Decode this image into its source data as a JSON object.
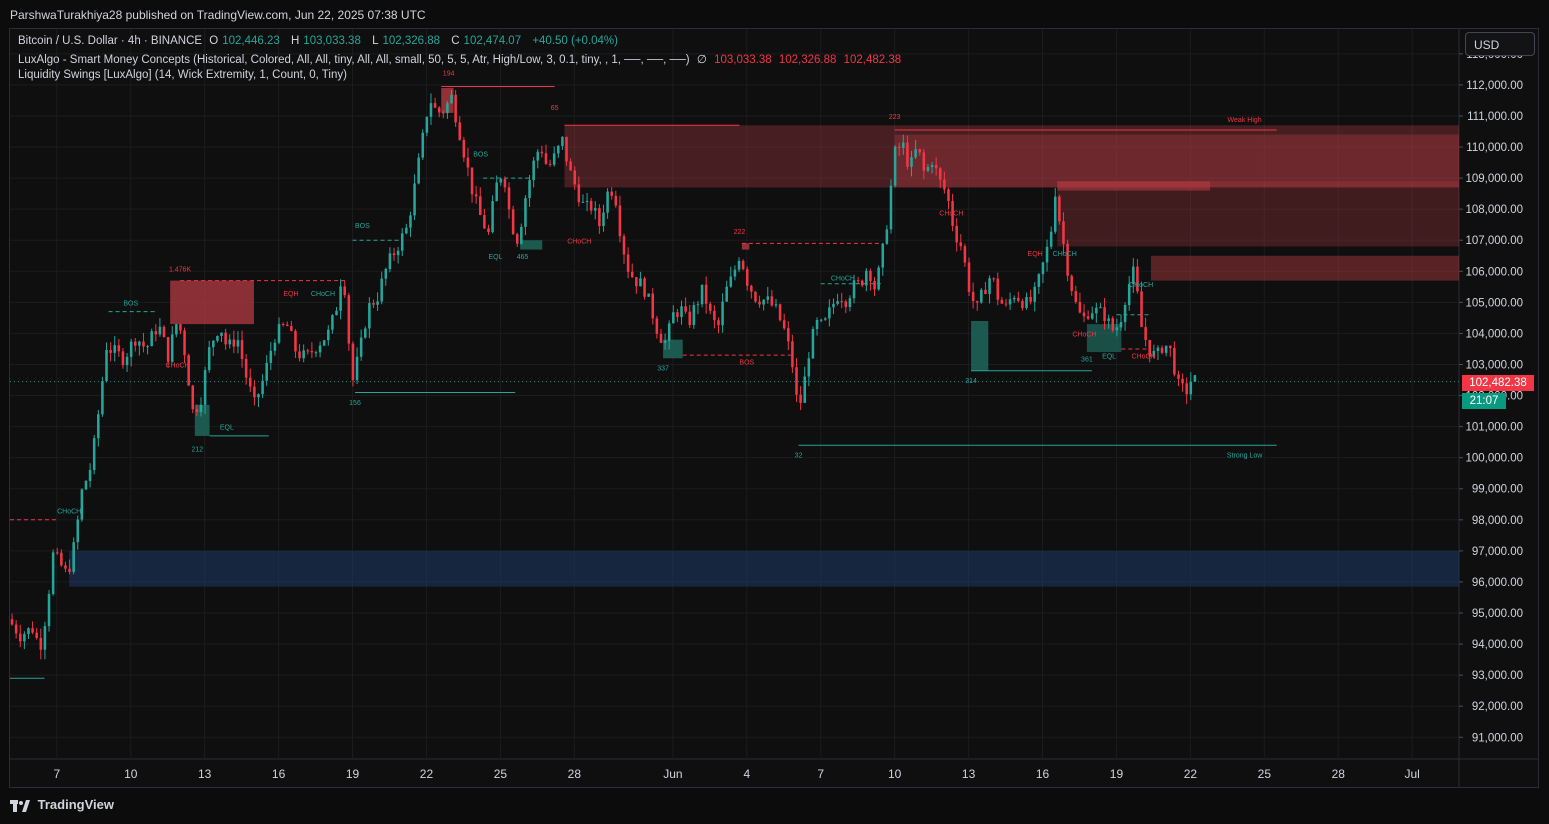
{
  "header": {
    "publisher": "ParshwaTurakhiya28 published on TradingView.com, Jun 22, 2025 07:38 UTC"
  },
  "legend": {
    "symbol": "Bitcoin / U.S. Dollar · 4h · BINANCE",
    "open_label": "O",
    "open": "102,446.23",
    "high_label": "H",
    "high": "103,033.38",
    "low_label": "L",
    "low": "102,326.88",
    "close_label": "C",
    "close": "102,474.07",
    "change": "+40.50 (+0.04%)",
    "indicator1": "LuxAlgo - Smart Money Concepts (Historical, Colored, All, All, tiny, All, All, small, 50, 5, 5, Atr, High/Low, 3, 0.1, tiny, , 1, ──, ──, ──)",
    "indicator1_null": "∅",
    "indicator1_v1": "103,033.38",
    "indicator1_v2": "102,326.88",
    "indicator1_v3": "102,482.38",
    "indicator2": "Liquidity Swings [LuxAlgo] (14, Wick Extremity, 1, Count, 0, Tiny)"
  },
  "currency_button": "USD",
  "price_tag": "102,482.38",
  "countdown_tag": "21:07",
  "footer": {
    "brand": "TradingView"
  },
  "colors": {
    "up": "#26a69a",
    "down": "#f23645",
    "supply_zone": "#b33b41",
    "demand_zone": "#1f6b5f",
    "blue_zone": "#1e3a66",
    "grid": "#1c1c1f"
  },
  "chart_data": {
    "type": "candlestick",
    "title": "",
    "xlabel": "",
    "ylabel": "",
    "ylim": [
      90300,
      113800
    ],
    "y_ticks": [
      91000,
      92000,
      93000,
      94000,
      95000,
      96000,
      97000,
      98000,
      99000,
      100000,
      101000,
      102000,
      103000,
      104000,
      105000,
      106000,
      107000,
      108000,
      109000,
      110000,
      111000,
      112000,
      113000
    ],
    "y_tick_labels": [
      "91,000.00",
      "92,000.00",
      "93,000.00",
      "94,000.00",
      "95,000.00",
      "96,000.00",
      "97,000.00",
      "98,000.00",
      "99,000.00",
      "100,000.00",
      "101,000.00",
      "102,000.00",
      "103,000.00",
      "104,000.00",
      "105,000.00",
      "106,000.00",
      "107,000.00",
      "108,000.00",
      "109,000.00",
      "110,000.00",
      "111,000.00",
      "112,000.00",
      "113,000.00"
    ],
    "x_ticks": [
      {
        "day": 7,
        "label": "7"
      },
      {
        "day": 10,
        "label": "10"
      },
      {
        "day": 13,
        "label": "13"
      },
      {
        "day": 16,
        "label": "16"
      },
      {
        "day": 19,
        "label": "19"
      },
      {
        "day": 22,
        "label": "22"
      },
      {
        "day": 25,
        "label": "25"
      },
      {
        "day": 28,
        "label": "28"
      },
      {
        "day": 32,
        "label": "Jun"
      },
      {
        "day": 35,
        "label": "4"
      },
      {
        "day": 38,
        "label": "7"
      },
      {
        "day": 41,
        "label": "10"
      },
      {
        "day": 44,
        "label": "13"
      },
      {
        "day": 47,
        "label": "16"
      },
      {
        "day": 50,
        "label": "19"
      },
      {
        "day": 53,
        "label": "22"
      },
      {
        "day": 56,
        "label": "25"
      },
      {
        "day": 59,
        "label": "28"
      },
      {
        "day": 62,
        "label": "Jul"
      }
    ],
    "x_range_days": [
      5.1,
      63.9
    ],
    "price_path": [
      [
        5.1,
        94800
      ],
      [
        5.6,
        94300
      ],
      [
        6.1,
        94500
      ],
      [
        6.4,
        93900
      ],
      [
        6.7,
        95200
      ],
      [
        6.9,
        96900
      ],
      [
        7.2,
        96600
      ],
      [
        7.5,
        96200
      ],
      [
        7.8,
        97200
      ],
      [
        8.1,
        98900
      ],
      [
        8.5,
        99800
      ],
      [
        8.8,
        101600
      ],
      [
        9.1,
        103600
      ],
      [
        9.4,
        103400
      ],
      [
        9.8,
        103200
      ],
      [
        10.3,
        103900
      ],
      [
        10.7,
        103500
      ],
      [
        11.2,
        104300
      ],
      [
        11.6,
        103300
      ],
      [
        12.0,
        104500
      ],
      [
        12.3,
        103300
      ],
      [
        12.6,
        101500
      ],
      [
        12.9,
        101800
      ],
      [
        13.3,
        103600
      ],
      [
        13.7,
        104300
      ],
      [
        14.0,
        103500
      ],
      [
        14.4,
        103900
      ],
      [
        14.8,
        102500
      ],
      [
        15.1,
        101700
      ],
      [
        15.5,
        102600
      ],
      [
        15.9,
        103900
      ],
      [
        16.4,
        104300
      ],
      [
        16.8,
        103400
      ],
      [
        17.2,
        103200
      ],
      [
        17.6,
        103600
      ],
      [
        18.1,
        104000
      ],
      [
        18.4,
        104700
      ],
      [
        18.7,
        106200
      ],
      [
        18.9,
        104000
      ],
      [
        19.1,
        102500
      ],
      [
        19.4,
        103500
      ],
      [
        19.7,
        104800
      ],
      [
        20.1,
        105200
      ],
      [
        20.5,
        106200
      ],
      [
        20.9,
        106800
      ],
      [
        21.3,
        107400
      ],
      [
        21.6,
        108700
      ],
      [
        21.9,
        110100
      ],
      [
        22.2,
        111600
      ],
      [
        22.5,
        111100
      ],
      [
        22.8,
        111200
      ],
      [
        23.1,
        111600
      ],
      [
        23.4,
        110600
      ],
      [
        23.7,
        109500
      ],
      [
        24.0,
        108400
      ],
      [
        24.3,
        107700
      ],
      [
        24.6,
        107200
      ],
      [
        24.9,
        108700
      ],
      [
        25.2,
        109300
      ],
      [
        25.5,
        107600
      ],
      [
        25.8,
        107000
      ],
      [
        26.1,
        108400
      ],
      [
        26.4,
        109400
      ],
      [
        26.7,
        110100
      ],
      [
        27.0,
        109300
      ],
      [
        27.3,
        109700
      ],
      [
        27.6,
        110200
      ],
      [
        27.9,
        109200
      ],
      [
        28.2,
        108600
      ],
      [
        28.5,
        108000
      ],
      [
        28.8,
        108100
      ],
      [
        29.1,
        107500
      ],
      [
        29.4,
        108500
      ],
      [
        29.7,
        108700
      ],
      [
        30.0,
        107000
      ],
      [
        30.3,
        106000
      ],
      [
        30.6,
        105700
      ],
      [
        30.9,
        105500
      ],
      [
        31.2,
        104800
      ],
      [
        31.5,
        104000
      ],
      [
        31.8,
        103700
      ],
      [
        32.1,
        104600
      ],
      [
        32.4,
        104800
      ],
      [
        32.7,
        104300
      ],
      [
        33.0,
        104900
      ],
      [
        33.3,
        105400
      ],
      [
        33.6,
        104600
      ],
      [
        33.9,
        104100
      ],
      [
        34.2,
        105300
      ],
      [
        34.5,
        105800
      ],
      [
        34.8,
        106600
      ],
      [
        35.1,
        105700
      ],
      [
        35.4,
        105200
      ],
      [
        35.7,
        105100
      ],
      [
        36.0,
        105000
      ],
      [
        36.3,
        104700
      ],
      [
        36.6,
        104100
      ],
      [
        36.9,
        103200
      ],
      [
        37.1,
        101900
      ],
      [
        37.3,
        101800
      ],
      [
        37.6,
        103400
      ],
      [
        37.9,
        104300
      ],
      [
        38.2,
        104200
      ],
      [
        38.5,
        104800
      ],
      [
        38.8,
        105300
      ],
      [
        39.1,
        105100
      ],
      [
        39.4,
        105500
      ],
      [
        39.7,
        105600
      ],
      [
        40.0,
        106200
      ],
      [
        40.3,
        105400
      ],
      [
        40.5,
        106200
      ],
      [
        40.7,
        107100
      ],
      [
        40.9,
        108500
      ],
      [
        41.1,
        109800
      ],
      [
        41.4,
        110100
      ],
      [
        41.7,
        109300
      ],
      [
        42.0,
        110000
      ],
      [
        42.3,
        109100
      ],
      [
        42.6,
        109600
      ],
      [
        42.9,
        108900
      ],
      [
        43.2,
        108500
      ],
      [
        43.5,
        107300
      ],
      [
        43.8,
        106800
      ],
      [
        44.1,
        105500
      ],
      [
        44.4,
        104700
      ],
      [
        44.7,
        105400
      ],
      [
        45.0,
        105900
      ],
      [
        45.3,
        105100
      ],
      [
        45.6,
        104800
      ],
      [
        45.9,
        105300
      ],
      [
        46.2,
        105100
      ],
      [
        46.5,
        104900
      ],
      [
        46.8,
        105300
      ],
      [
        47.1,
        106200
      ],
      [
        47.4,
        107100
      ],
      [
        47.6,
        108600
      ],
      [
        47.8,
        107500
      ],
      [
        48.1,
        106100
      ],
      [
        48.4,
        105000
      ],
      [
        48.7,
        104400
      ],
      [
        49.0,
        104800
      ],
      [
        49.3,
        104700
      ],
      [
        49.6,
        104600
      ],
      [
        49.9,
        104100
      ],
      [
        50.2,
        104300
      ],
      [
        50.5,
        105400
      ],
      [
        50.8,
        106000
      ],
      [
        51.1,
        104200
      ],
      [
        51.4,
        103500
      ],
      [
        51.7,
        103200
      ],
      [
        52.0,
        103700
      ],
      [
        52.3,
        103400
      ],
      [
        52.6,
        102300
      ],
      [
        52.9,
        102100
      ],
      [
        53.1,
        102482
      ]
    ],
    "zones": [
      {
        "kind": "supply",
        "x0": 11.6,
        "x1": 15.0,
        "y0": 104300,
        "y1": 105700,
        "opacity": 0.75
      },
      {
        "kind": "supply",
        "x0": 22.6,
        "x1": 23.1,
        "y0": 111100,
        "y1": 111900,
        "opacity": 0.8
      },
      {
        "kind": "supply",
        "x0": 27.6,
        "x1": 63.9,
        "y0": 108700,
        "y1": 110700,
        "opacity": 0.35
      },
      {
        "kind": "supply",
        "x0": 41.0,
        "x1": 63.9,
        "y0": 108700,
        "y1": 110400,
        "opacity": 0.35
      },
      {
        "kind": "supply",
        "x0": 47.6,
        "x1": 63.9,
        "y0": 106800,
        "y1": 108900,
        "opacity": 0.3
      },
      {
        "kind": "supply",
        "x0": 47.6,
        "x1": 53.8,
        "y0": 108600,
        "y1": 108900,
        "opacity": 0.6
      },
      {
        "kind": "supply",
        "x0": 51.4,
        "x1": 63.9,
        "y0": 105700,
        "y1": 106500,
        "opacity": 0.45
      },
      {
        "kind": "supply",
        "x0": 34.8,
        "x1": 35.1,
        "y0": 106700,
        "y1": 106900,
        "opacity": 0.8
      },
      {
        "kind": "demand",
        "x0": 12.6,
        "x1": 13.2,
        "y0": 100700,
        "y1": 101700,
        "opacity": 0.8
      },
      {
        "kind": "demand",
        "x0": 31.6,
        "x1": 32.4,
        "y0": 103200,
        "y1": 103800,
        "opacity": 0.8
      },
      {
        "kind": "demand",
        "x0": 25.8,
        "x1": 26.7,
        "y0": 106700,
        "y1": 107000,
        "opacity": 0.8
      },
      {
        "kind": "demand",
        "x0": 44.1,
        "x1": 44.8,
        "y0": 102800,
        "y1": 104400,
        "opacity": 0.8
      },
      {
        "kind": "demand",
        "x0": 48.8,
        "x1": 50.2,
        "y0": 103400,
        "y1": 104300,
        "opacity": 0.7
      },
      {
        "kind": "blue",
        "x0": 7.5,
        "x1": 63.9,
        "y0": 95850,
        "y1": 97000,
        "opacity": 0.55
      }
    ],
    "levels": [
      {
        "kind": "resistance",
        "style": "solid",
        "x0": 22.6,
        "x1": 27.2,
        "y": 111950
      },
      {
        "kind": "resistance",
        "style": "solid",
        "x0": 27.6,
        "x1": 34.7,
        "y": 110700
      },
      {
        "kind": "resistance",
        "style": "solid",
        "x0": 41.0,
        "x1": 56.5,
        "y": 110550
      },
      {
        "kind": "resistance",
        "style": "dashed",
        "x0": 34.8,
        "x1": 40.5,
        "y": 106900
      },
      {
        "kind": "resistance",
        "style": "dashed",
        "x0": 12.0,
        "x1": 18.7,
        "y": 105700
      },
      {
        "kind": "resistance",
        "style": "dashed",
        "x0": 5.1,
        "x1": 7.0,
        "y": 98000
      },
      {
        "kind": "resistance",
        "style": "dashed",
        "x0": 32.4,
        "x1": 36.8,
        "y": 103300
      },
      {
        "kind": "resistance",
        "style": "dashed",
        "x0": 50.2,
        "x1": 51.4,
        "y": 103500
      },
      {
        "kind": "support",
        "style": "solid",
        "x0": 13.2,
        "x1": 15.6,
        "y": 100700
      },
      {
        "kind": "support",
        "style": "solid",
        "x0": 19.1,
        "x1": 25.6,
        "y": 102100
      },
      {
        "kind": "support",
        "style": "solid",
        "x0": 37.1,
        "x1": 56.5,
        "y": 100400
      },
      {
        "kind": "support",
        "style": "solid",
        "x0": 44.1,
        "x1": 49.0,
        "y": 102800
      },
      {
        "kind": "support",
        "style": "solid",
        "x0": 5.1,
        "x1": 6.5,
        "y": 92900
      },
      {
        "kind": "support",
        "style": "dashed",
        "x0": 9.1,
        "x1": 11.0,
        "y": 104700
      },
      {
        "kind": "support",
        "style": "dashed",
        "x0": 19.0,
        "x1": 21.0,
        "y": 107000
      },
      {
        "kind": "support",
        "style": "dashed",
        "x0": 38.0,
        "x1": 40.5,
        "y": 105600
      },
      {
        "kind": "support",
        "style": "dashed",
        "x0": 50.0,
        "x1": 51.3,
        "y": 104600
      },
      {
        "kind": "support",
        "style": "dashed",
        "x0": 24.3,
        "x1": 26.3,
        "y": 109000
      },
      {
        "kind": "current",
        "style": "dotted",
        "x0": 5.1,
        "x1": 63.9,
        "y": 102450
      }
    ],
    "annotations": [
      {
        "text": "194",
        "x": 22.9,
        "y": 112300,
        "color": "red"
      },
      {
        "text": "65",
        "x": 27.2,
        "y": 111200,
        "color": "red"
      },
      {
        "text": "223",
        "x": 41.0,
        "y": 110900,
        "color": "red"
      },
      {
        "text": "Weak High",
        "x": 55.2,
        "y": 110800,
        "color": "red"
      },
      {
        "text": "222",
        "x": 34.7,
        "y": 107200,
        "color": "red"
      },
      {
        "text": "1.476K",
        "x": 12.0,
        "y": 106000,
        "color": "red"
      },
      {
        "text": "BOS",
        "x": 10.0,
        "y": 104900,
        "color": "green"
      },
      {
        "text": "BOS",
        "x": 19.4,
        "y": 107400,
        "color": "green"
      },
      {
        "text": "BOS",
        "x": 24.2,
        "y": 109700,
        "color": "green"
      },
      {
        "text": "BOS",
        "x": 35.0,
        "y": 103000,
        "color": "red"
      },
      {
        "text": "EQH",
        "x": 16.5,
        "y": 105200,
        "color": "red"
      },
      {
        "text": "EQH",
        "x": 46.7,
        "y": 106500,
        "color": "red"
      },
      {
        "text": "CHoCH",
        "x": 17.8,
        "y": 105200,
        "color": "green"
      },
      {
        "text": "CHoCH",
        "x": 7.5,
        "y": 98200,
        "color": "green"
      },
      {
        "text": "CHoCH",
        "x": 38.9,
        "y": 105700,
        "color": "green"
      },
      {
        "text": "CHoCH",
        "x": 47.9,
        "y": 106500,
        "color": "green"
      },
      {
        "text": "CHoCH",
        "x": 51.0,
        "y": 105500,
        "color": "green"
      },
      {
        "text": "CHoCH",
        "x": 11.9,
        "y": 102900,
        "color": "red"
      },
      {
        "text": "CHoCH",
        "x": 28.2,
        "y": 106900,
        "color": "red"
      },
      {
        "text": "CHoCH",
        "x": 43.3,
        "y": 107800,
        "color": "red"
      },
      {
        "text": "CHoCH",
        "x": 48.7,
        "y": 103900,
        "color": "red"
      },
      {
        "text": "CHoCH",
        "x": 51.1,
        "y": 103200,
        "color": "red"
      },
      {
        "text": "EQL",
        "x": 13.9,
        "y": 100900,
        "color": "green"
      },
      {
        "text": "EQL",
        "x": 24.8,
        "y": 106400,
        "color": "green"
      },
      {
        "text": "EQL",
        "x": 49.7,
        "y": 103200,
        "color": "green"
      },
      {
        "text": "465",
        "x": 25.9,
        "y": 106400,
        "color": "green"
      },
      {
        "text": "212",
        "x": 12.7,
        "y": 100200,
        "color": "green"
      },
      {
        "text": "156",
        "x": 19.1,
        "y": 101700,
        "color": "green"
      },
      {
        "text": "337",
        "x": 31.6,
        "y": 102800,
        "color": "green"
      },
      {
        "text": "32",
        "x": 37.1,
        "y": 100000,
        "color": "green"
      },
      {
        "text": "314",
        "x": 44.1,
        "y": 102400,
        "color": "green"
      },
      {
        "text": "361",
        "x": 48.8,
        "y": 103100,
        "color": "green"
      },
      {
        "text": "Strong Low",
        "x": 55.2,
        "y": 100000,
        "color": "green"
      }
    ]
  }
}
